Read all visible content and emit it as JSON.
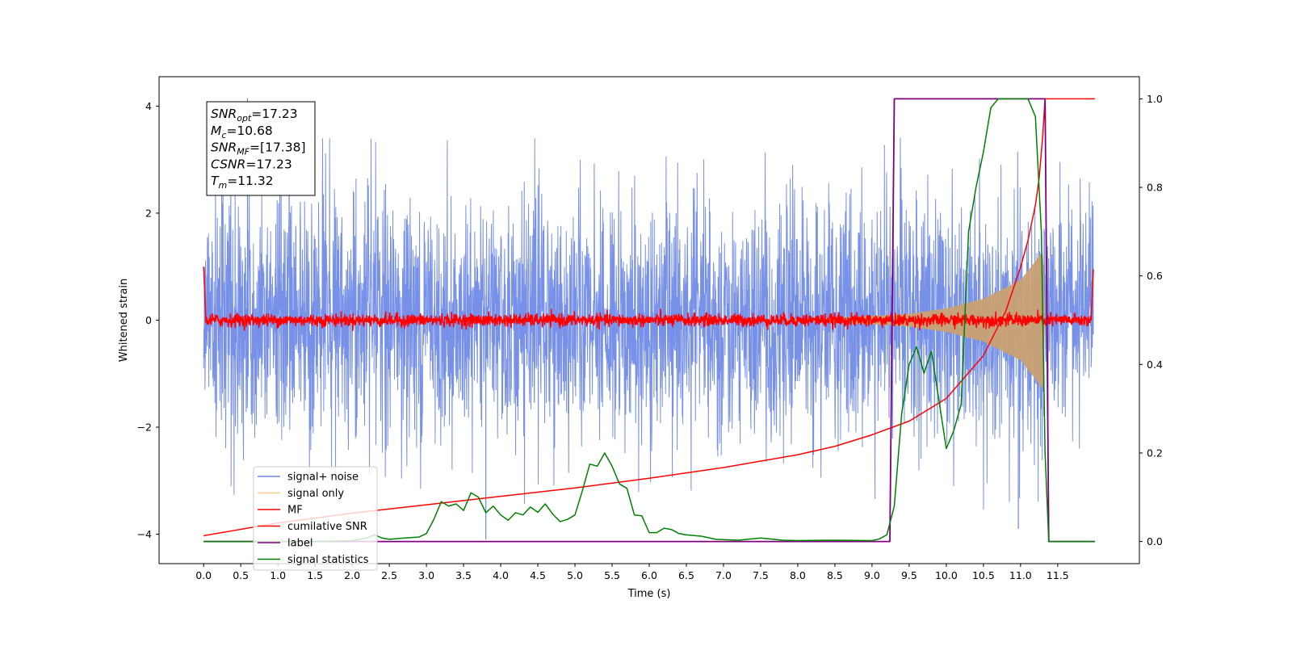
{
  "chart_data": {
    "type": "line",
    "title": "",
    "xlabel": "Time (s)",
    "ylabel": "Whitened strain",
    "xlim": [
      -0.6,
      12.6
    ],
    "ylim": [
      -4.55,
      4.55
    ],
    "y2lim": [
      -0.05,
      1.05
    ],
    "grid": false,
    "legend_position": "lower-left",
    "xticks": [
      0.0,
      0.5,
      1.0,
      1.5,
      2.0,
      2.5,
      3.0,
      3.5,
      4.0,
      4.5,
      5.0,
      5.5,
      6.0,
      6.5,
      7.0,
      7.5,
      8.0,
      8.5,
      9.0,
      9.5,
      10.0,
      10.5,
      11.0,
      11.5
    ],
    "xtick_labels": [
      "0.0",
      "0.5",
      "1.0",
      "1.5",
      "2.0",
      "2.5",
      "3.0",
      "3.5",
      "4.0",
      "4.5",
      "5.0",
      "5.5",
      "6.0",
      "6.5",
      "7.0",
      "7.5",
      "8.0",
      "8.5",
      "9.0",
      "9.5",
      "10.0",
      "10.5",
      "11.0",
      "11.5"
    ],
    "yticks": [
      4,
      2,
      0,
      -2,
      -4
    ],
    "ytick_labels": [
      "4",
      "2",
      "0",
      "−2",
      "−4"
    ],
    "y2ticks": [
      1.0,
      0.8,
      0.6,
      0.4,
      0.2,
      0.0
    ],
    "y2tick_labels": [
      "1.0",
      "0.8",
      "0.6",
      "0.4",
      "0.2",
      "0.0"
    ],
    "annotation": {
      "lines": [
        {
          "base": "SNR",
          "sub": "opt",
          "value": "=17.23"
        },
        {
          "base": "M",
          "sub": "c",
          "value": "=10.68"
        },
        {
          "base": "SNR",
          "sub": "MF",
          "value": "=[17.38]"
        },
        {
          "base": "CSNR",
          "sub": "",
          "value": "=17.23"
        },
        {
          "base": "T",
          "sub": "m",
          "value": "=11.32"
        }
      ]
    },
    "series": [
      {
        "name": "signal+ noise",
        "axis": "left",
        "color": "#6b87e6",
        "kind": "noise",
        "t_start": 0.0,
        "t_end": 11.98,
        "center": 0.0,
        "typical_amplitude": 1.6,
        "extreme_points": [
          [
            0.59,
            4.15
          ],
          [
            3.8,
            -4.1
          ],
          [
            10.97,
            -3.9
          ]
        ]
      },
      {
        "name": "signal only",
        "axis": "left",
        "color": "#c2a073",
        "kind": "chirp",
        "t_start": 7.5,
        "t_end": 11.33,
        "envelope": [
          [
            7.5,
            0.0
          ],
          [
            8.5,
            0.05
          ],
          [
            9.0,
            0.08
          ],
          [
            9.5,
            0.12
          ],
          [
            10.0,
            0.22
          ],
          [
            10.5,
            0.4
          ],
          [
            11.0,
            0.75
          ],
          [
            11.2,
            1.1
          ],
          [
            11.3,
            1.3
          ],
          [
            11.33,
            0.0
          ]
        ]
      },
      {
        "name": "MF",
        "axis": "left",
        "color": "#ff0000",
        "kind": "mf",
        "t_start": 0.0,
        "t_end": 11.98,
        "baseline": 0.0,
        "jitter": 0.06,
        "edge_points": [
          [
            0.0,
            1.0
          ],
          [
            0.03,
            0.0
          ],
          [
            11.95,
            0.0
          ],
          [
            11.98,
            0.95
          ]
        ]
      },
      {
        "name": "cumilative SNR",
        "axis": "right",
        "color": "#ff0000",
        "x": [
          0.0,
          1.0,
          2.0,
          3.0,
          4.0,
          5.0,
          6.0,
          7.0,
          8.0,
          8.5,
          9.0,
          9.5,
          10.0,
          10.5,
          10.8,
          11.0,
          11.1,
          11.2,
          11.25,
          11.3,
          11.33,
          12.0
        ],
        "y": [
          0.013,
          0.042,
          0.064,
          0.083,
          0.102,
          0.121,
          0.143,
          0.167,
          0.196,
          0.215,
          0.241,
          0.272,
          0.323,
          0.42,
          0.52,
          0.62,
          0.68,
          0.76,
          0.82,
          0.92,
          1.0,
          1.0
        ]
      },
      {
        "name": "label",
        "axis": "right",
        "color": "#7f007f",
        "x": [
          0.0,
          9.24,
          9.3,
          11.33,
          11.38,
          12.0
        ],
        "y": [
          0.0,
          0.0,
          1.0,
          1.0,
          0.0,
          0.0
        ]
      },
      {
        "name": "signal statistics",
        "axis": "right",
        "color": "#008000",
        "x": [
          0.0,
          0.5,
          1.0,
          1.5,
          2.0,
          2.1,
          2.2,
          2.3,
          2.4,
          2.5,
          2.7,
          2.9,
          3.0,
          3.1,
          3.2,
          3.3,
          3.4,
          3.5,
          3.6,
          3.7,
          3.8,
          3.9,
          4.0,
          4.1,
          4.2,
          4.3,
          4.4,
          4.5,
          4.6,
          4.7,
          4.8,
          4.9,
          5.0,
          5.1,
          5.2,
          5.3,
          5.4,
          5.5,
          5.6,
          5.7,
          5.8,
          5.9,
          6.0,
          6.1,
          6.2,
          6.3,
          6.4,
          6.5,
          6.7,
          6.9,
          7.2,
          7.5,
          7.8,
          8.0,
          8.5,
          9.0,
          9.1,
          9.2,
          9.3,
          9.4,
          9.5,
          9.6,
          9.7,
          9.8,
          9.9,
          10.0,
          10.1,
          10.2,
          10.3,
          10.4,
          10.5,
          10.6,
          10.7,
          10.8,
          10.9,
          11.0,
          11.1,
          11.2,
          11.28,
          11.33,
          11.38,
          11.42,
          11.5,
          12.0
        ],
        "y": [
          0.0,
          0.0,
          0.0,
          0.0,
          0.002,
          0.005,
          0.008,
          0.015,
          0.008,
          0.005,
          0.008,
          0.01,
          0.018,
          0.05,
          0.09,
          0.08,
          0.085,
          0.07,
          0.11,
          0.1,
          0.065,
          0.08,
          0.06,
          0.048,
          0.065,
          0.06,
          0.078,
          0.066,
          0.085,
          0.062,
          0.045,
          0.05,
          0.06,
          0.115,
          0.175,
          0.17,
          0.2,
          0.17,
          0.13,
          0.12,
          0.06,
          0.058,
          0.02,
          0.02,
          0.03,
          0.027,
          0.018,
          0.015,
          0.012,
          0.005,
          0.003,
          0.008,
          0.003,
          0.002,
          0.003,
          0.002,
          0.006,
          0.015,
          0.08,
          0.29,
          0.4,
          0.44,
          0.38,
          0.43,
          0.32,
          0.21,
          0.25,
          0.31,
          0.7,
          0.8,
          0.88,
          0.98,
          1.0,
          1.0,
          1.0,
          1.0,
          1.0,
          0.96,
          0.7,
          0.2,
          0.0,
          0.0,
          0.0,
          0.0
        ]
      }
    ]
  }
}
